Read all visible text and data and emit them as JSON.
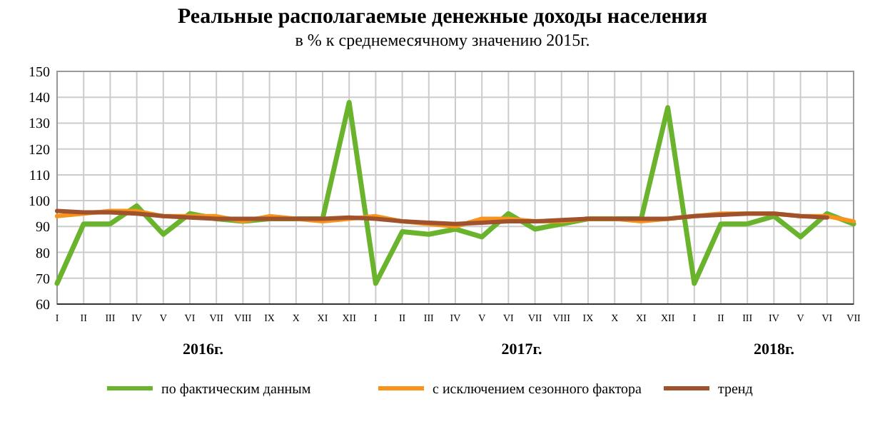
{
  "chart_data": {
    "type": "line",
    "title": "Реальные располагаемые денежные доходы населения",
    "subtitle": "в % к среднемесячному значению 2015г.",
    "categories": [
      "I",
      "II",
      "III",
      "IV",
      "V",
      "VI",
      "VII",
      "VIII",
      "IX",
      "X",
      "XI",
      "XII",
      "I",
      "II",
      "III",
      "IV",
      "V",
      "VI",
      "VII",
      "VIII",
      "IX",
      "X",
      "XI",
      "XII",
      "I",
      "II",
      "III",
      "IV",
      "V",
      "VI",
      "VII"
    ],
    "series": [
      {
        "name": "по фактическим данным",
        "color": "#6ab42d",
        "values": [
          68,
          91,
          91,
          98,
          87,
          95,
          93,
          92,
          93,
          93,
          93,
          138,
          68,
          88,
          87,
          89,
          86,
          95,
          89,
          91,
          93,
          93,
          93,
          136,
          68,
          91,
          91,
          94,
          86,
          95,
          91
        ]
      },
      {
        "name": "с исключением сезонного фактора",
        "color": "#f7941d",
        "values": [
          94,
          95,
          96,
          96,
          94,
          94,
          94,
          92,
          94,
          93,
          92,
          93,
          94,
          92,
          91,
          90,
          93,
          93,
          92,
          92,
          93,
          93,
          92,
          93,
          94,
          95,
          95,
          95,
          94,
          94,
          92
        ]
      },
      {
        "name": "тренд",
        "color": "#a0522d",
        "values": [
          96,
          95.5,
          95.5,
          95,
          94,
          93.5,
          93,
          93,
          93,
          93,
          93,
          93.5,
          93,
          92,
          91.5,
          91,
          91.5,
          92,
          92,
          92.5,
          93,
          93,
          93,
          93,
          94,
          94.5,
          95,
          95,
          94,
          93.5,
          null
        ]
      }
    ],
    "ylim": [
      60,
      150
    ],
    "yticks": [
      60,
      70,
      80,
      90,
      100,
      110,
      120,
      130,
      140,
      150
    ],
    "grid": true,
    "legend": "bottom",
    "line_style": "solid",
    "annotations": [
      "2016г.",
      "2017г.",
      "2018г."
    ]
  }
}
